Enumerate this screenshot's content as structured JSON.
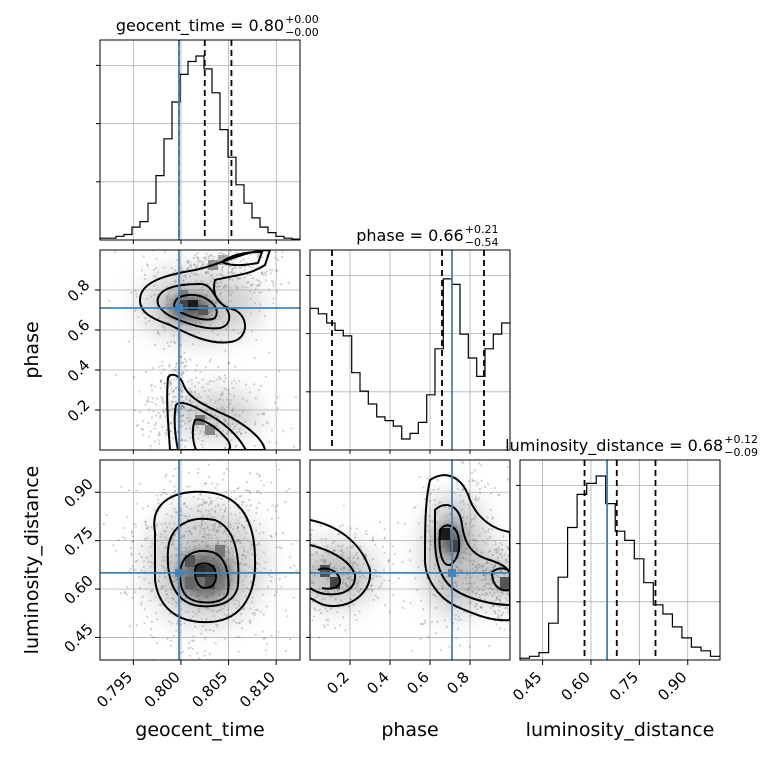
{
  "chart_data": {
    "type": "corner",
    "parameters": [
      "geocent_time",
      "phase",
      "luminosity_distance"
    ],
    "truths": [
      0.7998,
      0.71,
      0.65
    ],
    "truth_color": "#4682b4",
    "titles": [
      {
        "param": "geocent_time",
        "text": "geocent_time = 0.80",
        "sup": "+0.00",
        "sub": "−0.00"
      },
      {
        "param": "phase",
        "text": "phase = 0.66",
        "sup": "+0.21",
        "sub": "−0.54"
      },
      {
        "param": "luminosity_distance",
        "text": "luminosity_distance = 0.68",
        "sup": "+0.12",
        "sub": "−0.09"
      }
    ],
    "axes": {
      "geocent_time": {
        "range": [
          0.7915,
          0.8125
        ],
        "ticks": [
          0.795,
          0.8,
          0.805,
          0.81
        ],
        "tick_labels": [
          "0.795",
          "0.800",
          "0.805",
          "0.810"
        ]
      },
      "phase": {
        "range": [
          0.0,
          1.0
        ],
        "ticks": [
          0.2,
          0.4,
          0.6,
          0.8
        ],
        "tick_labels": [
          "0.2",
          "0.4",
          "0.6",
          "0.8"
        ]
      },
      "luminosity_distance": {
        "range": [
          0.38,
          1.0
        ],
        "ticks": [
          0.45,
          0.6,
          0.75,
          0.9
        ],
        "tick_labels": [
          "0.45",
          "0.60",
          "0.75",
          "0.90"
        ]
      }
    },
    "quantiles": {
      "geocent_time": [
        0.7998,
        0.8025,
        0.8053
      ],
      "phase": [
        0.11,
        0.66,
        0.87
      ],
      "luminosity_distance": [
        0.58,
        0.68,
        0.8
      ]
    },
    "histograms": {
      "geocent_time": [
        0.01,
        0.01,
        0.02,
        0.03,
        0.07,
        0.1,
        0.2,
        0.35,
        0.55,
        0.75,
        0.9,
        0.97,
        1.0,
        0.93,
        0.8,
        0.6,
        0.45,
        0.3,
        0.2,
        0.12,
        0.07,
        0.04,
        0.02,
        0.01,
        0.005
      ],
      "phase": [
        0.77,
        0.74,
        0.69,
        0.65,
        0.62,
        0.42,
        0.32,
        0.25,
        0.18,
        0.16,
        0.13,
        0.06,
        0.09,
        0.15,
        0.3,
        0.55,
        0.93,
        0.9,
        0.63,
        0.5,
        0.4,
        0.55,
        0.63,
        0.69
      ],
      "luminosity_distance": [
        0.01,
        0.02,
        0.04,
        0.2,
        0.45,
        0.72,
        0.9,
        0.96,
        1.0,
        0.85,
        0.7,
        0.65,
        0.55,
        0.42,
        0.3,
        0.25,
        0.18,
        0.12,
        0.07,
        0.05,
        0.02
      ]
    }
  }
}
